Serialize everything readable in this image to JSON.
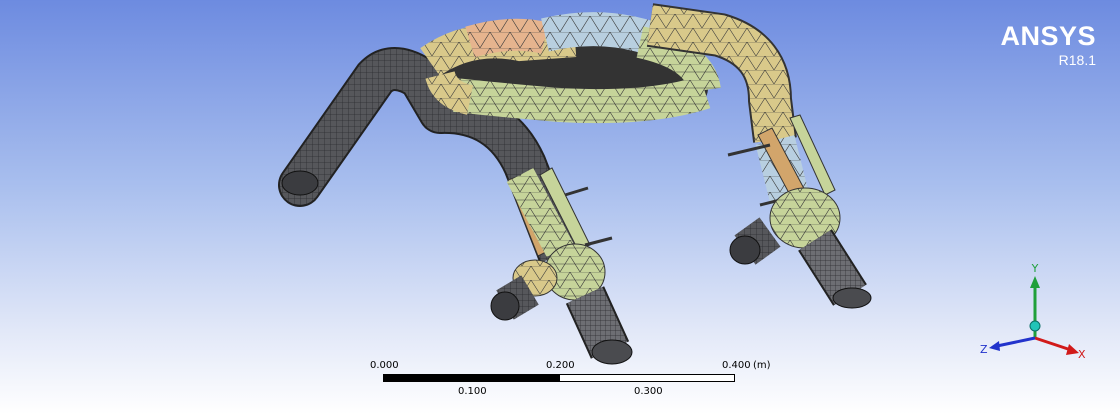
{
  "viewport": {
    "background_top": "#6d8be0",
    "background_bottom": "#ffffff"
  },
  "brand": {
    "name": "ANSYS",
    "version": "R18.1"
  },
  "scale_bar": {
    "ticks_top": [
      "0.000",
      "0.200",
      "0.400"
    ],
    "unit": "(m)",
    "ticks_bottom": [
      "0.100",
      "0.300"
    ]
  },
  "triad": {
    "y_label": "Y",
    "x_label": "X",
    "z_label": "Z",
    "colors": {
      "y": "#1fa03a",
      "x": "#d11a1a",
      "z": "#2233cc",
      "origin": "#22c4b8"
    }
  },
  "model": {
    "icon": "meshed-pipe-assembly",
    "colors": {
      "mesh_dark": "#4d4e52",
      "mesh_tan": "#d9c98a",
      "mesh_green": "#c6d49a",
      "mesh_blue": "#b8cfe0",
      "mesh_peach": "#e6b48e"
    }
  }
}
